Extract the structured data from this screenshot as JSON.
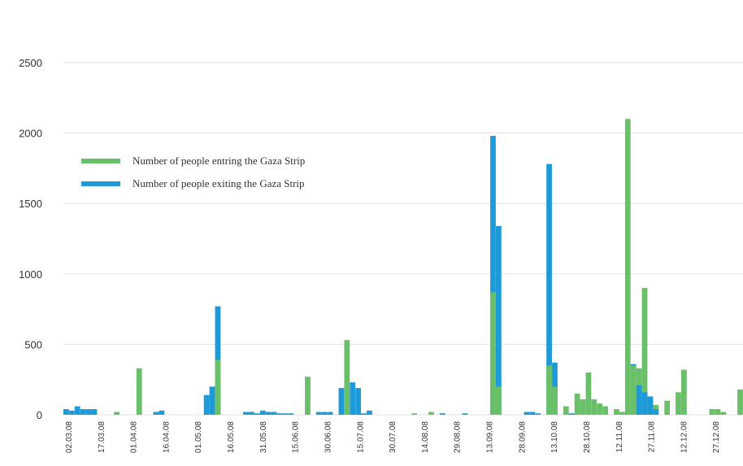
{
  "chart_data": {
    "type": "bar",
    "y_ticks": [
      "0",
      "500",
      "1000",
      "1500",
      "2000",
      "2500"
    ],
    "ylim": [
      0,
      2500
    ],
    "grid": true,
    "legend_position": "upper-left",
    "colors": {
      "entering": "#6abf69",
      "exiting": "#1e9ad9"
    },
    "x_tick_labels": [
      "02.03.08",
      "17.03.08",
      "01.04.08",
      "16.04.08",
      "01.05.08",
      "16.05.08",
      "31.05.08",
      "15.06.08",
      "30.06.08",
      "15.07.08",
      "30.07.08",
      "14.08.08",
      "29.08.08",
      "13.09.08",
      "28.09.08",
      "13.10.08",
      "28.10.08",
      "12.11.08",
      "27.11.08",
      "12.12.08",
      "27.12.08"
    ],
    "series": [
      {
        "name": "Number of people entring the Gaza Strip",
        "key": "entering",
        "values": [
          0,
          0,
          0,
          0,
          0,
          0,
          0,
          0,
          0,
          20,
          0,
          0,
          0,
          330,
          0,
          0,
          0,
          0,
          0,
          0,
          0,
          0,
          0,
          0,
          0,
          0,
          0,
          390,
          0,
          0,
          0,
          0,
          0,
          0,
          0,
          0,
          0,
          0,
          0,
          0,
          0,
          0,
          0,
          270,
          0,
          0,
          0,
          0,
          0,
          0,
          530,
          0,
          0,
          0,
          0,
          0,
          0,
          0,
          0,
          0,
          0,
          0,
          10,
          0,
          0,
          20,
          0,
          0,
          0,
          0,
          0,
          0,
          0,
          0,
          0,
          0,
          870,
          200,
          0,
          0,
          0,
          0,
          0,
          0,
          0,
          0,
          350,
          200,
          0,
          60,
          0,
          150,
          110,
          300,
          110,
          80,
          60,
          0,
          40,
          20,
          2100,
          350,
          330,
          900,
          130,
          70,
          0,
          100,
          0,
          160,
          320,
          0,
          0,
          0,
          0,
          40,
          40,
          20,
          0,
          0,
          180
        ]
      },
      {
        "name": "Number of people exiting the Gaza Strip",
        "key": "exiting",
        "values": [
          40,
          30,
          60,
          40,
          40,
          40,
          0,
          0,
          0,
          0,
          0,
          0,
          0,
          0,
          0,
          0,
          20,
          30,
          0,
          0,
          0,
          0,
          0,
          0,
          0,
          140,
          200,
          770,
          0,
          0,
          0,
          0,
          20,
          20,
          10,
          30,
          20,
          20,
          10,
          10,
          10,
          0,
          0,
          0,
          0,
          20,
          20,
          20,
          0,
          190,
          0,
          230,
          190,
          10,
          30,
          0,
          0,
          0,
          0,
          0,
          0,
          0,
          0,
          0,
          0,
          0,
          0,
          10,
          0,
          0,
          0,
          10,
          0,
          0,
          0,
          0,
          1980,
          1340,
          0,
          0,
          0,
          0,
          20,
          20,
          10,
          0,
          1780,
          370,
          0,
          0,
          10,
          0,
          0,
          0,
          0,
          0,
          0,
          0,
          0,
          0,
          0,
          360,
          210,
          160,
          130,
          40,
          0,
          0,
          0,
          0,
          0,
          0,
          0,
          0,
          0,
          0,
          0,
          0,
          0,
          0,
          0
        ]
      }
    ]
  }
}
